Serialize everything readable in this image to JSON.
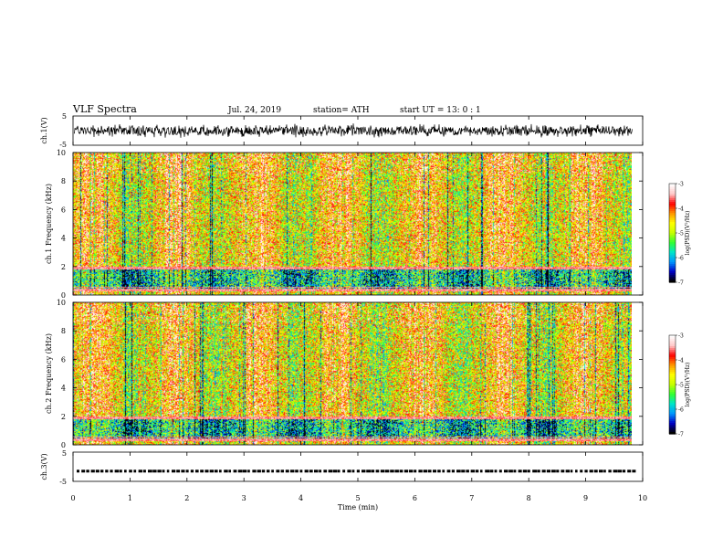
{
  "header": {
    "title": "VLF Spectra",
    "date": "Jul. 24, 2019",
    "station": "station= ATH",
    "start": "start UT = 13: 0 : 1"
  },
  "chart_data": [
    {
      "type": "line",
      "panel": "ch1-waveform",
      "ylabel": "ch.1(V)",
      "ylim": [
        -5,
        5
      ],
      "yticks": [
        "5",
        "-5"
      ],
      "xlim": [
        0,
        10
      ],
      "data_end_min": 9.82,
      "amplitude_range": [
        -2.5,
        2.5
      ]
    },
    {
      "type": "heatmap",
      "panel": "ch1-spectrogram",
      "ylabel": "ch.1 Frequency (kHz)",
      "ylim": [
        0,
        10
      ],
      "yticks": [
        "10",
        "8",
        "6",
        "4",
        "2",
        "0"
      ],
      "xlim": [
        0,
        10
      ],
      "colorbar": {
        "label": "log(PSD)(V²/Hz)",
        "range": [
          -7,
          -3
        ],
        "ticks": [
          "-3",
          "-4",
          "-5",
          "-6",
          "-7"
        ]
      }
    },
    {
      "type": "heatmap",
      "panel": "ch2-spectrogram",
      "ylabel": "ch.2 Frequency (kHz)",
      "ylim": [
        0,
        10
      ],
      "yticks": [
        "10",
        "8",
        "6",
        "4",
        "2",
        "0"
      ],
      "xlim": [
        0,
        10
      ],
      "colorbar": {
        "label": "log(PSD)(V²/Hz)",
        "range": [
          -7,
          -3
        ],
        "ticks": [
          "-3",
          "-4",
          "-5",
          "-6",
          "-7"
        ]
      }
    },
    {
      "type": "line",
      "panel": "ch3-waveform",
      "ylabel": "ch.3(V)",
      "ylim": [
        -5,
        5
      ],
      "yticks": [
        "5",
        "-5"
      ],
      "xlim": [
        0,
        10
      ],
      "level": -1.5
    }
  ],
  "xaxis": {
    "label": "Time (min)",
    "ticks": [
      "0",
      "1",
      "2",
      "3",
      "4",
      "5",
      "6",
      "7",
      "8",
      "9",
      "10"
    ]
  },
  "colormap": [
    "#000000",
    "#0000c8",
    "#0096ff",
    "#00e6c8",
    "#32ff32",
    "#c8ff00",
    "#ffff00",
    "#ff9600",
    "#ff0000",
    "#ffc8c8",
    "#ffffff"
  ]
}
